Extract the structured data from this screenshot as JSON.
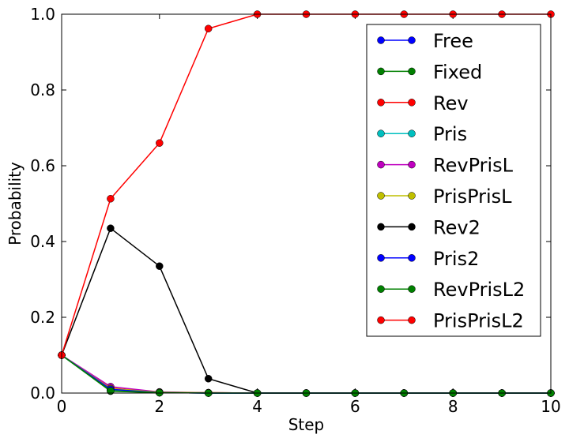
{
  "chart_data": {
    "type": "line",
    "title": "",
    "xlabel": "Step",
    "ylabel": "Probability",
    "xlim": [
      0,
      10
    ],
    "ylim": [
      0,
      1.0
    ],
    "xticks": [
      0,
      2,
      4,
      6,
      8,
      10
    ],
    "yticks": [
      0.0,
      0.2,
      0.4,
      0.6,
      0.8,
      1.0
    ],
    "xtick_labels": [
      "0",
      "2",
      "4",
      "6",
      "8",
      "10"
    ],
    "ytick_labels": [
      "0.0",
      "0.2",
      "0.4",
      "0.6",
      "0.8",
      "1.0"
    ],
    "grid": false,
    "legend_position": "top-right",
    "x": [
      0,
      1,
      2,
      3,
      4,
      5,
      6,
      7,
      8,
      9,
      10
    ],
    "series": [
      {
        "name": "Free",
        "color": "#0000ff",
        "values": [
          0.1,
          0.008,
          0.001,
          0.0,
          0,
          0,
          0,
          0,
          0,
          0,
          0
        ]
      },
      {
        "name": "Fixed",
        "color": "#008000",
        "values": [
          0.1,
          0.005,
          0.001,
          0.0,
          0,
          0,
          0,
          0,
          0,
          0,
          0
        ]
      },
      {
        "name": "Rev",
        "color": "#ff0000",
        "values": [
          0.1,
          0.013,
          0.002,
          0.001,
          0,
          0,
          0,
          0,
          0,
          0,
          0
        ]
      },
      {
        "name": "Pris",
        "color": "#00bfbf",
        "values": [
          0.1,
          0.008,
          0.001,
          0.0,
          0,
          0,
          0,
          0,
          0,
          0,
          0
        ]
      },
      {
        "name": "RevPrisL",
        "color": "#bf00bf",
        "values": [
          0.1,
          0.017,
          0.003,
          0.001,
          0,
          0,
          0,
          0,
          0,
          0,
          0
        ]
      },
      {
        "name": "PrisPrisL",
        "color": "#bfbf00",
        "values": [
          0.1,
          0.012,
          0.002,
          0.001,
          0,
          0,
          0,
          0,
          0,
          0,
          0
        ]
      },
      {
        "name": "Rev2",
        "color": "#000000",
        "values": [
          0.1,
          0.435,
          0.335,
          0.038,
          0.0,
          0,
          0,
          0,
          0,
          0,
          0
        ]
      },
      {
        "name": "Pris2",
        "color": "#0000ff",
        "values": [
          0.1,
          0.01,
          0.001,
          0.0,
          0,
          0,
          0,
          0,
          0,
          0,
          0
        ]
      },
      {
        "name": "RevPrisL2",
        "color": "#008000",
        "values": [
          0.1,
          0.006,
          0.001,
          0.0,
          0,
          0,
          0,
          0,
          0,
          0,
          0
        ]
      },
      {
        "name": "PrisPrisL2",
        "color": "#ff0000",
        "values": [
          0.1,
          0.513,
          0.66,
          0.962,
          1.0,
          1.0,
          1.0,
          1.0,
          1.0,
          1.0,
          1.0
        ]
      }
    ]
  }
}
